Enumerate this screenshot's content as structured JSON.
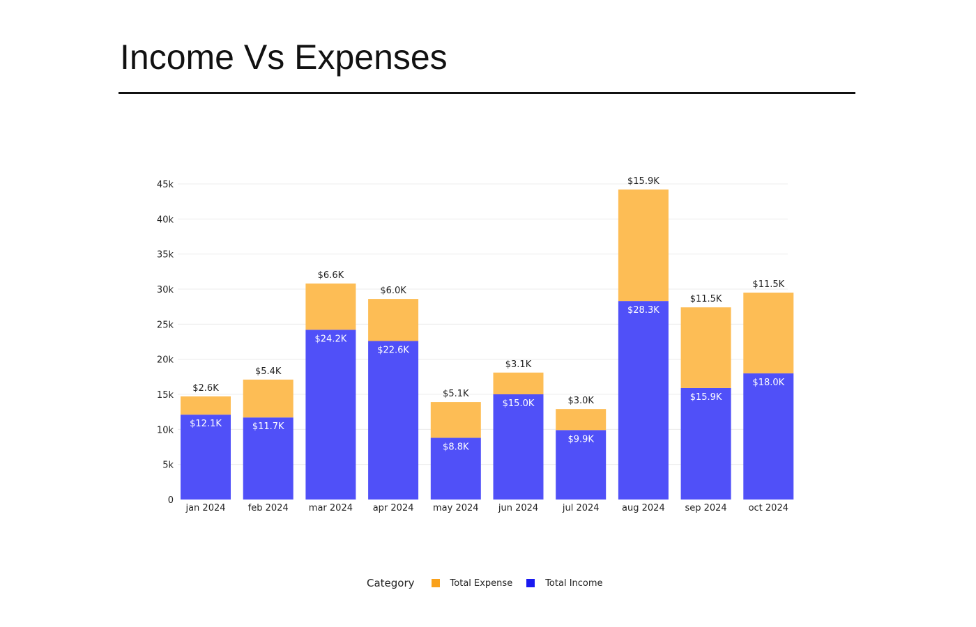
{
  "page": {
    "title": "Income Vs Expenses"
  },
  "chart_data": {
    "type": "bar",
    "stacked": true,
    "title": "Income Vs Expenses",
    "xlabel": "",
    "ylabel": "",
    "ylim": [
      0,
      45000
    ],
    "yticks": [
      0,
      5000,
      10000,
      15000,
      20000,
      25000,
      30000,
      35000,
      40000,
      45000
    ],
    "ytick_labels": [
      "0",
      "5k",
      "10k",
      "15k",
      "20k",
      "25k",
      "30k",
      "35k",
      "40k",
      "45k"
    ],
    "grid": true,
    "legend_position": "bottom",
    "legend_title": "Category",
    "categories": [
      "jan 2024",
      "feb 2024",
      "mar 2024",
      "apr 2024",
      "may 2024",
      "jun 2024",
      "jul 2024",
      "aug 2024",
      "sep 2024",
      "oct 2024"
    ],
    "series": [
      {
        "name": "Total Income",
        "color": "#5050f8",
        "swatch_color": "#1a1af0",
        "values": [
          12100,
          11700,
          24200,
          22600,
          8800,
          15000,
          9900,
          28300,
          15900,
          18000
        ],
        "labels": [
          "$12.1K",
          "$11.7K",
          "$24.2K",
          "$22.6K",
          "$8.8K",
          "$15.0K",
          "$9.9K",
          "$28.3K",
          "$15.9K",
          "$18.0K"
        ]
      },
      {
        "name": "Total Expense",
        "color": "#fdbd55",
        "swatch_color": "#f9a11b",
        "values": [
          2600,
          5400,
          6600,
          6000,
          5100,
          3100,
          3000,
          15900,
          11500,
          11500
        ],
        "labels": [
          "$2.6K",
          "$5.4K",
          "$6.6K",
          "$6.0K",
          "$5.1K",
          "$3.1K",
          "$3.0K",
          "$15.9K",
          "$11.5K",
          "$11.5K"
        ]
      }
    ]
  }
}
